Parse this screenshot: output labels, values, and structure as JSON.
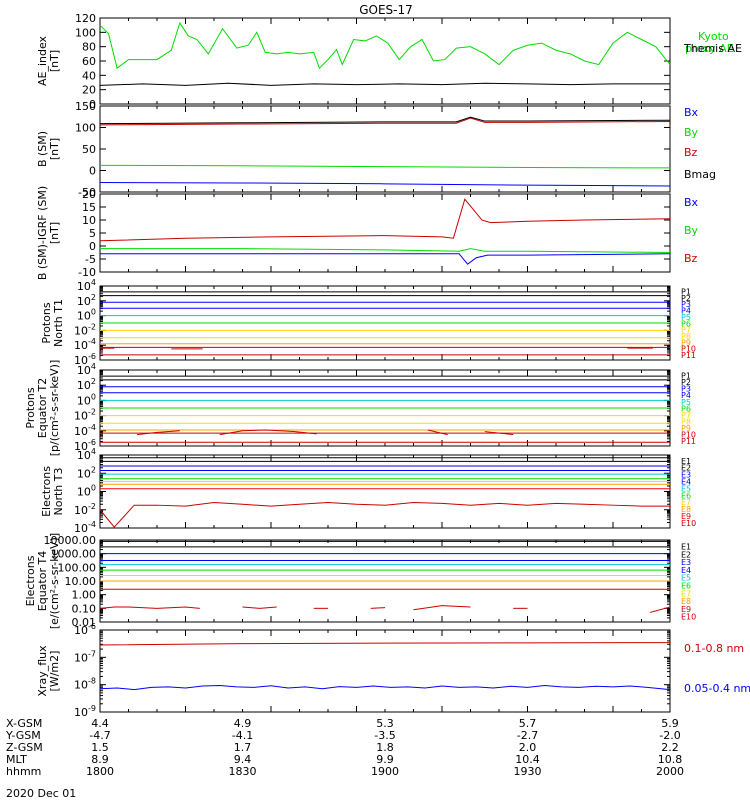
{
  "title": "GOES-17",
  "date_label": "2020 Dec 01",
  "colors": {
    "black": "#000000",
    "green": "#00dd00",
    "blue": "#0000ff",
    "red": "#cc0000",
    "bright_red": "#ff0000",
    "cyan": "#00cccc",
    "yellow": "#ffd700",
    "orange": "#ff8c00"
  },
  "ephemeris": {
    "rows": [
      {
        "label": "X-GSM",
        "values": [
          "4.4",
          "4.9",
          "5.3",
          "5.7",
          "5.9"
        ]
      },
      {
        "label": "Y-GSM",
        "values": [
          "-4.7",
          "-4.1",
          "-3.5",
          "-2.7",
          "-2.0"
        ]
      },
      {
        "label": "Z-GSM",
        "values": [
          "1.5",
          "1.7",
          "1.8",
          "2.0",
          "2.2"
        ]
      },
      {
        "label": "MLT",
        "values": [
          "8.9",
          "9.4",
          "9.9",
          "10.4",
          "10.8"
        ]
      },
      {
        "label": "hhmm",
        "values": [
          "1800",
          "1830",
          "1900",
          "1930",
          "2000"
        ]
      }
    ]
  },
  "chart_data": [
    {
      "type": "line",
      "ylabel": "AE_index [nT]",
      "ylim": [
        0,
        120
      ],
      "yticks": [
        "0",
        "20",
        "40",
        "60",
        "80",
        "100",
        "120"
      ],
      "xlim": [
        1800,
        2000
      ],
      "series": [
        {
          "name": "Kyoto proxy AE",
          "color": "#00dd00",
          "x": [
            1800,
            1803,
            1806,
            1810,
            1815,
            1820,
            1825,
            1828,
            1831,
            1834,
            1838,
            1843,
            1848,
            1852,
            1855,
            1858,
            1862,
            1866,
            1870,
            1875,
            1877,
            1880,
            1883,
            1885,
            1889,
            1893,
            1897,
            1901,
            1905,
            1909,
            1913,
            1917,
            1921,
            1925,
            1930,
            1935,
            1940,
            1945,
            1950,
            1955,
            1960,
            1965,
            1970,
            1975,
            1980,
            1985,
            1990,
            1995,
            2000
          ],
          "y": [
            110,
            98,
            50,
            62,
            62,
            62,
            75,
            113,
            95,
            90,
            70,
            105,
            78,
            82,
            100,
            72,
            70,
            72,
            70,
            72,
            50,
            62,
            76,
            55,
            90,
            88,
            95,
            85,
            62,
            80,
            90,
            60,
            62,
            78,
            80,
            70,
            55,
            75,
            82,
            85,
            75,
            70,
            60,
            55,
            85,
            100,
            90,
            80,
            55
          ]
        },
        {
          "name": "Themis AE",
          "color": "#000000",
          "x": [
            1800,
            1815,
            1830,
            1845,
            1860,
            1875,
            1890,
            1905,
            1920,
            1935,
            1950,
            1965,
            1980,
            2000
          ],
          "y": [
            26,
            28,
            26,
            29,
            26,
            28,
            27,
            28,
            27,
            29,
            28,
            27,
            28,
            28
          ]
        }
      ]
    },
    {
      "type": "line",
      "ylabel": "B (SM) [nT]",
      "ylim": [
        -50,
        150
      ],
      "yticks": [
        "-50",
        "0",
        "50",
        "100",
        "150"
      ],
      "series": [
        {
          "name": "Bx",
          "color": "#0000ff",
          "x": [
            1800,
            1850,
            1900,
            1950,
            2000
          ],
          "y": [
            -28,
            -29,
            -31,
            -34,
            -36
          ]
        },
        {
          "name": "By",
          "color": "#00dd00",
          "x": [
            1800,
            1850,
            1900,
            1950,
            2000
          ],
          "y": [
            12,
            11,
            9,
            7,
            6
          ]
        },
        {
          "name": "Bz",
          "color": "#cc0000",
          "x": [
            1800,
            1850,
            1900,
            1925,
            1930,
            1935,
            1950,
            2000
          ],
          "y": [
            106,
            108,
            110,
            110,
            122,
            112,
            112,
            114
          ]
        },
        {
          "name": "Bmag",
          "color": "#000000",
          "x": [
            1800,
            1850,
            1900,
            1925,
            1930,
            1935,
            1950,
            2000
          ],
          "y": [
            109,
            111,
            113,
            113,
            124,
            115,
            115,
            117
          ]
        }
      ]
    },
    {
      "type": "line",
      "ylabel": "B (SM)-IGRF (SM) [nT]",
      "ylim": [
        -10,
        20
      ],
      "yticks": [
        "-10",
        "-5",
        "0",
        "5",
        "10",
        "15",
        "20"
      ],
      "series": [
        {
          "name": "Bx",
          "color": "#0000ff",
          "x": [
            1800,
            1850,
            1900,
            1926,
            1929,
            1932,
            1936,
            1950,
            2000
          ],
          "y": [
            -3,
            -3,
            -3,
            -3,
            -7,
            -4.5,
            -3.5,
            -3.5,
            -3
          ]
        },
        {
          "name": "By",
          "color": "#00dd00",
          "x": [
            1800,
            1850,
            1900,
            1926,
            1930,
            1935,
            1950,
            2000
          ],
          "y": [
            -1,
            -1,
            -1.5,
            -2,
            -1,
            -2,
            -2,
            -2.5
          ]
        },
        {
          "name": "Bz",
          "color": "#cc0000",
          "x": [
            1800,
            1830,
            1860,
            1900,
            1920,
            1924,
            1928,
            1931,
            1934,
            1937,
            1950,
            1970,
            2000
          ],
          "y": [
            2,
            3,
            3.5,
            4,
            3.5,
            3,
            18,
            14,
            10,
            9,
            9.5,
            10,
            10.5
          ]
        }
      ]
    },
    {
      "type": "line",
      "ylabel": "Protons North T1",
      "ylog": true,
      "ylim_exp": [
        -6,
        4
      ],
      "yticks": [
        "10^-6",
        "10^-4",
        "10^-2",
        "10^0",
        "10^2",
        "10^4"
      ],
      "channels": [
        {
          "name": "P1",
          "color": "#000000",
          "log": 3.2
        },
        {
          "name": "P2",
          "color": "#000000",
          "log": 2.7
        },
        {
          "name": "P3",
          "color": "#0000ff",
          "log": 1.8
        },
        {
          "name": "P4",
          "color": "#0000ff",
          "log": 1.0
        },
        {
          "name": "P5",
          "color": "#00cccc",
          "log": 0.0
        },
        {
          "name": "P6",
          "color": "#00dd00",
          "log": -1.0
        },
        {
          "name": "P7",
          "color": "#ffd700",
          "log": -2.0
        },
        {
          "name": "P8",
          "color": "#ffd700",
          "log": -3.0
        },
        {
          "name": "P9",
          "color": "#ffa000",
          "log": -3.8
        },
        {
          "name": "P10",
          "color": "#cc0000",
          "log": -4.3
        },
        {
          "name": "P11",
          "color": "#cc0000",
          "log": -5.3
        }
      ],
      "segments": [
        {
          "color": "#cc0000",
          "x": [
            1800,
            1805
          ],
          "y": [
            -4.4,
            -4.4
          ]
        },
        {
          "color": "#cc0000",
          "x": [
            1825,
            1836
          ],
          "y": [
            -4.5,
            -4.5
          ]
        },
        {
          "color": "#cc0000",
          "x": [
            1985,
            1994
          ],
          "y": [
            -4.4,
            -4.4
          ]
        }
      ]
    },
    {
      "type": "line",
      "ylabel": "Protons Equator T2 [p/(cm²-s-sr-keV)]",
      "ylog": true,
      "ylim_exp": [
        -6,
        4
      ],
      "yticks": [
        "10^-6",
        "10^-4",
        "10^-2",
        "10^0",
        "10^2",
        "10^4"
      ],
      "channels": [
        {
          "name": "P1",
          "color": "#000000",
          "log": 3.2
        },
        {
          "name": "P2",
          "color": "#000000",
          "log": 2.7
        },
        {
          "name": "P3",
          "color": "#0000ff",
          "log": 1.8
        },
        {
          "name": "P4",
          "color": "#0000ff",
          "log": 1.0
        },
        {
          "name": "P5",
          "color": "#00cccc",
          "log": 0.0
        },
        {
          "name": "P6",
          "color": "#00dd00",
          "log": -1.0
        },
        {
          "name": "P7",
          "color": "#ffd700",
          "log": -2.0
        },
        {
          "name": "P8",
          "color": "#ffd700",
          "log": -3.0
        },
        {
          "name": "P9",
          "color": "#ffa000",
          "log": -3.9
        },
        {
          "name": "P10",
          "color": "#cc0000",
          "log": -4.3
        },
        {
          "name": "P11",
          "color": "#cc0000",
          "log": -5.5
        }
      ],
      "segments": [
        {
          "color": "#cc0000",
          "x": [
            1813,
            1820,
            1828
          ],
          "y": [
            -4.5,
            -4.2,
            -4.0
          ]
        },
        {
          "color": "#cc0000",
          "x": [
            1842,
            1850,
            1858,
            1868,
            1876
          ],
          "y": [
            -4.5,
            -4.0,
            -3.9,
            -4.1,
            -4.4
          ]
        },
        {
          "color": "#cc0000",
          "x": [
            1915,
            1922
          ],
          "y": [
            -3.9,
            -4.5
          ]
        },
        {
          "color": "#cc0000",
          "x": [
            1935,
            1945
          ],
          "y": [
            -4.1,
            -4.5
          ]
        }
      ]
    },
    {
      "type": "line",
      "ylabel": "Electrons North T3",
      "ylog": true,
      "ylim_exp": [
        -4,
        4
      ],
      "yticks": [
        "10^-4",
        "10^-2",
        "10^0",
        "10^2",
        "10^4"
      ],
      "channels": [
        {
          "name": "E1",
          "color": "#000000",
          "log": 3.7
        },
        {
          "name": "E2",
          "color": "#000000",
          "log": 3.3
        },
        {
          "name": "E3",
          "color": "#0000ff",
          "log": 2.8
        },
        {
          "name": "E4",
          "color": "#0000ff",
          "log": 2.3
        },
        {
          "name": "E5",
          "color": "#00cccc",
          "log": 1.9
        },
        {
          "name": "E6",
          "color": "#00dd00",
          "log": 1.4
        },
        {
          "name": "E7",
          "color": "#ffd700",
          "log": 1.1
        },
        {
          "name": "E8",
          "color": "#ffa000",
          "log": 0.8
        },
        {
          "name": "E9",
          "color": "#ff0000",
          "log": 0.3
        }
      ],
      "series": [
        {
          "name": "E10",
          "color": "#cc0000",
          "x": [
            1800,
            1805,
            1812,
            1820,
            1830,
            1840,
            1850,
            1860,
            1870,
            1880,
            1890,
            1900,
            1910,
            1920,
            1930,
            1940,
            1950,
            1960,
            1970,
            1980,
            1990,
            2000
          ],
          "y": [
            -2.0,
            -3.9,
            -1.5,
            -1.5,
            -1.6,
            -1.2,
            -1.4,
            -1.6,
            -1.4,
            -1.2,
            -1.4,
            -1.5,
            -1.2,
            -1.3,
            -1.5,
            -1.3,
            -1.5,
            -1.3,
            -1.4,
            -1.5,
            -1.6,
            -1.6
          ]
        }
      ]
    },
    {
      "type": "line",
      "ylabel": "Electrons Equator T4 [e/(cm²-s-sr-keV)]",
      "ylog": true,
      "ylim_exp": [
        -2,
        4
      ],
      "yticks": [
        "0.01",
        "0.10",
        "1.00",
        "10.00",
        "100.00",
        "1000.00",
        "10000.00"
      ],
      "channels": [
        {
          "name": "E1",
          "color": "#000000",
          "log": 3.9
        },
        {
          "name": "E2",
          "color": "#000000",
          "log": 3.5
        },
        {
          "name": "E3",
          "color": "#0000ff",
          "log": 3.0
        },
        {
          "name": "E4",
          "color": "#0000ff",
          "log": 2.5
        },
        {
          "name": "E5",
          "color": "#00cccc",
          "log": 2.2
        },
        {
          "name": "E6",
          "color": "#00dd00",
          "log": 1.8
        },
        {
          "name": "E7",
          "color": "#ffd700",
          "log": 1.4
        },
        {
          "name": "E8",
          "color": "#ffa000",
          "log": 1.0
        },
        {
          "name": "E9",
          "color": "#cc0000",
          "log": 0.4
        }
      ],
      "segments": [
        {
          "color": "#cc0000",
          "x": [
            1800,
            1805,
            1810,
            1820,
            1830,
            1835
          ],
          "y": [
            -1.0,
            -0.9,
            -0.9,
            -1.0,
            -0.9,
            -1.0
          ]
        },
        {
          "color": "#cc0000",
          "x": [
            1850,
            1856,
            1862
          ],
          "y": [
            -0.9,
            -1.0,
            -0.9
          ]
        },
        {
          "color": "#cc0000",
          "x": [
            1875,
            1880
          ],
          "y": [
            -1.0,
            -1.0
          ]
        },
        {
          "color": "#cc0000",
          "x": [
            1895,
            1900
          ],
          "y": [
            -1.0,
            -0.95
          ]
        },
        {
          "color": "#cc0000",
          "x": [
            1910,
            1920,
            1930
          ],
          "y": [
            -1.1,
            -0.8,
            -0.9
          ]
        },
        {
          "color": "#cc0000",
          "x": [
            1945,
            1950
          ],
          "y": [
            -1.0,
            -1.0
          ]
        },
        {
          "color": "#cc0000",
          "x": [
            1993,
            2000
          ],
          "y": [
            -1.3,
            -0.9
          ]
        }
      ],
      "extra_labels": [
        {
          "name": "E10",
          "color": "#cc0000"
        }
      ]
    },
    {
      "type": "line",
      "ylabel": "Xray_flux [W/m2]",
      "ylog": true,
      "ylim_exp": [
        -9,
        -6
      ],
      "yticks": [
        "10^-9",
        "10^-8",
        "10^-7",
        "10^-6"
      ],
      "series": [
        {
          "name": "0.1-0.8 nm",
          "color": "#cc0000",
          "x": [
            1800,
            1850,
            1900,
            1950,
            2000
          ],
          "y": [
            -6.55,
            -6.5,
            -6.48,
            -6.47,
            -6.46
          ]
        },
        {
          "name": "0.05-0.4 nm",
          "color": "#0000ff",
          "x": [
            1800,
            1806,
            1812,
            1818,
            1824,
            1830,
            1836,
            1842,
            1848,
            1854,
            1860,
            1866,
            1872,
            1878,
            1884,
            1890,
            1896,
            1902,
            1908,
            1914,
            1920,
            1926,
            1932,
            1938,
            1944,
            1950,
            1956,
            1962,
            1968,
            1974,
            1980,
            1986,
            1992,
            2000
          ],
          "y": [
            -8.15,
            -8.12,
            -8.18,
            -8.1,
            -8.08,
            -8.12,
            -8.05,
            -8.03,
            -8.08,
            -8.1,
            -8.04,
            -8.12,
            -8.08,
            -8.15,
            -8.07,
            -8.1,
            -8.05,
            -8.1,
            -8.08,
            -8.12,
            -8.05,
            -8.1,
            -8.08,
            -8.12,
            -8.06,
            -8.1,
            -8.03,
            -8.08,
            -8.1,
            -8.06,
            -8.08,
            -8.05,
            -8.1,
            -8.18
          ]
        }
      ]
    }
  ]
}
